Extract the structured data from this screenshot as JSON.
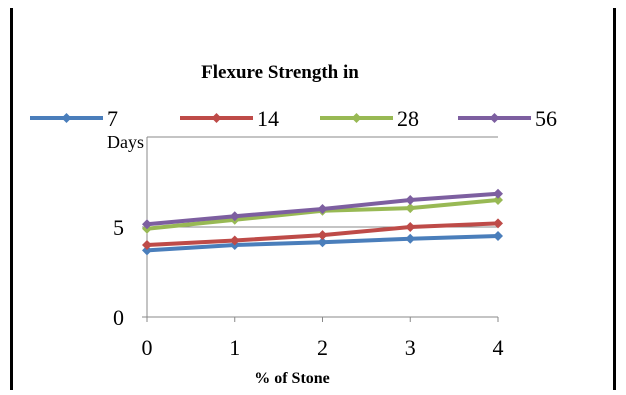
{
  "chart_data": {
    "type": "line",
    "title": "Flexure Strength in",
    "ylabel": "Days",
    "xlabel": "% of Stone",
    "x": [
      0,
      1,
      2,
      3,
      4
    ],
    "ylim": [
      0,
      10
    ],
    "yticks": [
      0,
      5
    ],
    "grid": true,
    "legend_position": "top",
    "series": [
      {
        "name": "7",
        "color": "#4A7EBB",
        "values": [
          3.7,
          4.0,
          4.15,
          4.35,
          4.5
        ]
      },
      {
        "name": "14",
        "color": "#BE4B48",
        "values": [
          4.0,
          4.25,
          4.55,
          5.0,
          5.2
        ]
      },
      {
        "name": "28",
        "color": "#98B954",
        "values": [
          4.9,
          5.4,
          5.9,
          6.05,
          6.5
        ]
      },
      {
        "name": "56",
        "color": "#7D5FA0",
        "values": [
          5.15,
          5.6,
          6.0,
          6.5,
          6.85
        ]
      }
    ]
  }
}
